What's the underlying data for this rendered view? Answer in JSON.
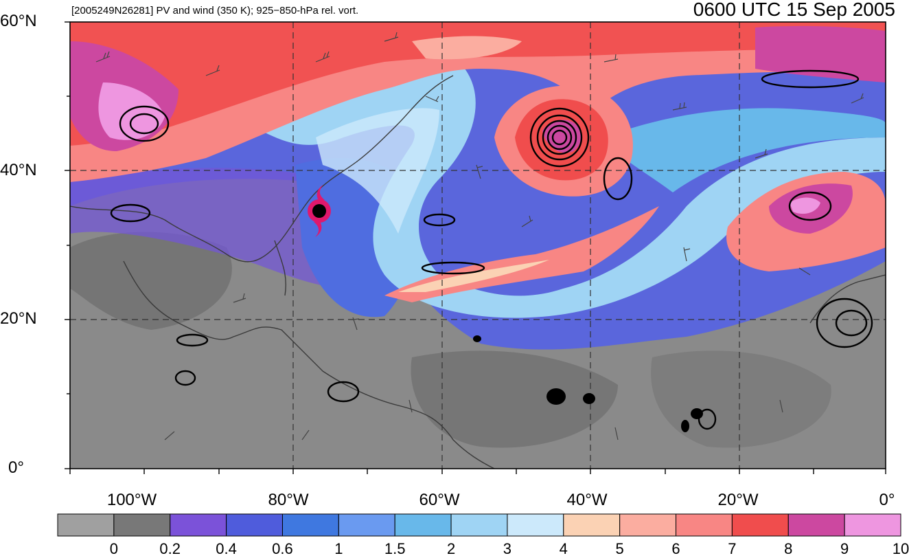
{
  "header": {
    "title": "[2005249N26281] PV and wind (350 K); 925−850-hPa rel. vort.",
    "valid_time": "0600 UTC 15 Sep 2005"
  },
  "axes": {
    "lat_labels": [
      "60°N",
      "40°N",
      "20°N",
      "0°"
    ],
    "lon_labels": [
      "100°W",
      "80°W",
      "60°W",
      "40°W",
      "20°W",
      "0°"
    ]
  },
  "colorbar": {
    "labels": [
      "0",
      "0.2",
      "0.4",
      "0.6",
      "1",
      "1.5",
      "2",
      "3",
      "4",
      "5",
      "6",
      "7",
      "8",
      "9",
      "10"
    ],
    "colors": [
      "#a0a0a0",
      "#787878",
      "#7b52d9",
      "#4f5cdc",
      "#3f78e0",
      "#6a9af0",
      "#68b8ea",
      "#9fd4f4",
      "#cce9fb",
      "#fbd2b4",
      "#fbada0",
      "#f88684",
      "#f04d4d",
      "#cc48a0",
      "#ee96e0"
    ]
  },
  "storm": {
    "symbol": "hurricane-symbol",
    "color": "#e0186c"
  }
}
